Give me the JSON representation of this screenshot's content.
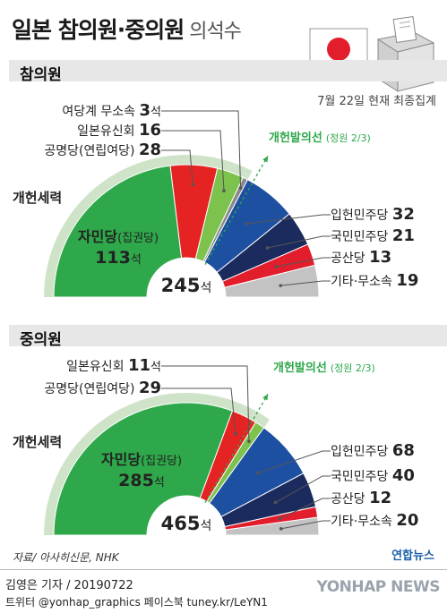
{
  "header": {
    "title": "일본 참의원·중의원",
    "subtitle": "의석수",
    "date_note": "7월 22일 현재 최종집계"
  },
  "colors": {
    "ldp": "#2ea84a",
    "komeito": "#e52322",
    "ishin": "#7cc24d",
    "ishin_small": "#8a8a8a",
    "cdp": "#1e50a2",
    "dpp": "#1c2b5e",
    "jcp": "#e21e2d",
    "others": "#c3c3c3",
    "reform_band": "#cfe3c9",
    "threshold": "#2ea84a"
  },
  "chart_data": [
    {
      "type": "pie",
      "shape": "half-donut",
      "title": "참의원",
      "total_label": "245석",
      "total": 245,
      "reform_label": "개헌세력",
      "threshold_label": "개헌발의선",
      "threshold_note": "(정원 2/3)",
      "slices": [
        {
          "name": "자민당(집권당)",
          "seats": 113,
          "value_label": "113석",
          "color": "ldp"
        },
        {
          "name": "공명당(연립여당)",
          "seats": 28,
          "value_label": "28",
          "color": "komeito"
        },
        {
          "name": "일본유신회",
          "seats": 16,
          "value_label": "16",
          "color": "ishin"
        },
        {
          "name": "여당계 무소속",
          "seats": 3,
          "value_label": "3석",
          "color": "ishin_small"
        },
        {
          "name": "입헌민주당",
          "seats": 32,
          "value_label": "32",
          "color": "cdp"
        },
        {
          "name": "국민민주당",
          "seats": 21,
          "value_label": "21",
          "color": "dpp"
        },
        {
          "name": "공산당",
          "seats": 13,
          "value_label": "13",
          "color": "jcp"
        },
        {
          "name": "기타·무소속",
          "seats": 19,
          "value_label": "19",
          "color": "others"
        }
      ]
    },
    {
      "type": "pie",
      "shape": "half-donut",
      "title": "중의원",
      "total_label": "465석",
      "total": 465,
      "reform_label": "개헌세력",
      "threshold_label": "개헌발의선",
      "threshold_note": "(정원 2/3)",
      "slices": [
        {
          "name": "자민당(집권당)",
          "seats": 285,
          "value_label": "285석",
          "color": "ldp"
        },
        {
          "name": "공명당(연립여당)",
          "seats": 29,
          "value_label": "29",
          "color": "komeito"
        },
        {
          "name": "일본유신회",
          "seats": 11,
          "value_label": "11석",
          "color": "ishin"
        },
        {
          "name": "입헌민주당",
          "seats": 68,
          "value_label": "68",
          "color": "cdp"
        },
        {
          "name": "국민민주당",
          "seats": 40,
          "value_label": "40",
          "color": "dpp"
        },
        {
          "name": "공산당",
          "seats": 12,
          "value_label": "12",
          "color": "jcp"
        },
        {
          "name": "기타·무소속",
          "seats": 20,
          "value_label": "20",
          "color": "others"
        }
      ]
    }
  ],
  "footer": {
    "source": "자료/ 아사히신문, NHK",
    "author": "김영은 기자 / 20190722",
    "sns": "트위터 @yonhap_graphics  페이스북 tuney.kr/LeYN1",
    "logo_yonhap": "연합뉴스",
    "logo_yonhapnews": "YONHAP NEWS"
  }
}
